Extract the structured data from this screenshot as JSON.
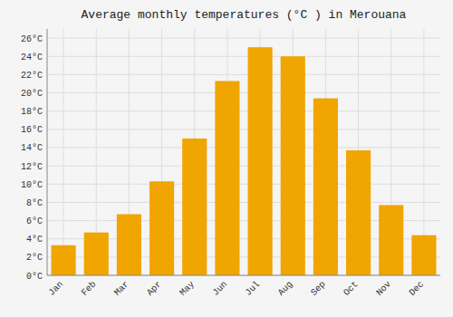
{
  "chart_data": {
    "type": "bar",
    "title": "Average monthly temperatures (°C ) in Merouana",
    "categories": [
      "Jan",
      "Feb",
      "Mar",
      "Apr",
      "May",
      "Jun",
      "Jul",
      "Aug",
      "Sep",
      "Oct",
      "Nov",
      "Dec"
    ],
    "values": [
      3.3,
      4.7,
      6.7,
      10.3,
      15.0,
      21.3,
      25.0,
      24.0,
      19.4,
      13.7,
      7.7,
      4.4
    ],
    "color": "#F0A500",
    "ylim": [
      0,
      27
    ],
    "yticks": [
      {
        "value": 0,
        "label": "0°C"
      },
      {
        "value": 2,
        "label": "2°C"
      },
      {
        "value": 4,
        "label": "4°C"
      },
      {
        "value": 6,
        "label": "6°C"
      },
      {
        "value": 8,
        "label": "8°C"
      },
      {
        "value": 10,
        "label": "10°C"
      },
      {
        "value": 12,
        "label": "12°C"
      },
      {
        "value": 14,
        "label": "14°C"
      },
      {
        "value": 16,
        "label": "16°C"
      },
      {
        "value": 18,
        "label": "18°C"
      },
      {
        "value": 20,
        "label": "20°C"
      },
      {
        "value": 22,
        "label": "22°C"
      },
      {
        "value": 24,
        "label": "24°C"
      },
      {
        "value": 26,
        "label": "26°C"
      }
    ],
    "grid": true
  }
}
